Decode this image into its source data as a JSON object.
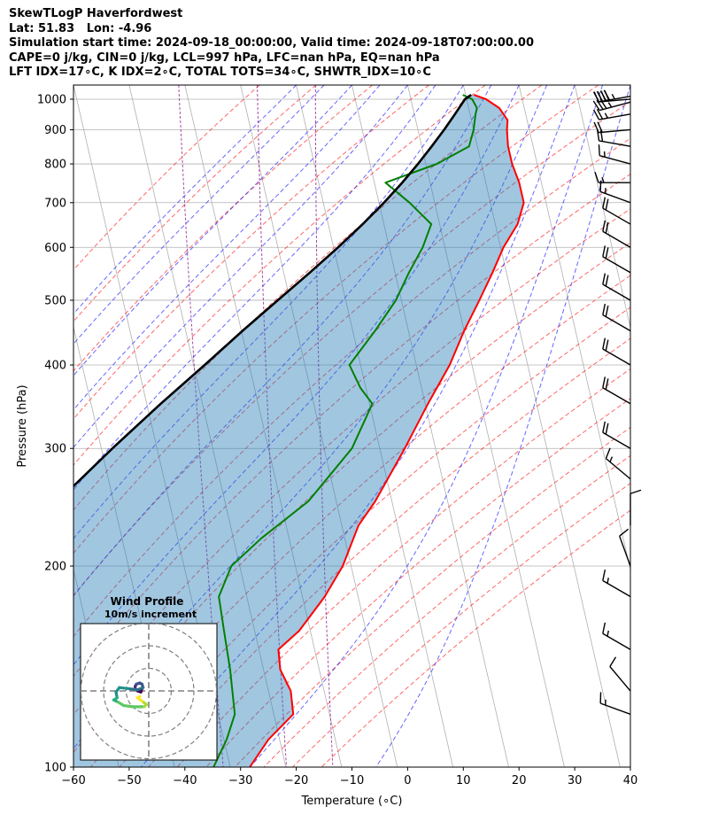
{
  "header": {
    "line1": "SkewTLogP Haverfordwest",
    "line2": "Lat: 51.83   Lon: -4.96",
    "line3": "Simulation start time: 2024-09-18_00:00:00, Valid time: 2024-09-18T07:00:00.00",
    "line4": "CAPE=0 j/kg, CIN=0 j/kg, LCL=997 hPa, LFC=nan hPa, EQ=nan hPa",
    "line5": "LFT IDX=17∘C, K IDX=2∘C, TOTAL TOTS=34∘C, SHWTR_IDX=10∘C"
  },
  "chart_data": {
    "type": "skew-t log-p",
    "xlabel": "Temperature (∘C)",
    "ylabel": "Pressure (hPa)",
    "xlim": [
      -60,
      40
    ],
    "ylim": [
      1050,
      100
    ],
    "x_ticks": [
      -60,
      -50,
      -40,
      -30,
      -20,
      -10,
      0,
      10,
      20,
      30,
      40
    ],
    "x_tick_labels": [
      "−60",
      "−50",
      "−40",
      "−30",
      "−20",
      "−10",
      "0",
      "10",
      "20",
      "30",
      "40"
    ],
    "y_ticks": [
      1000,
      900,
      800,
      700,
      600,
      500,
      400,
      300,
      200,
      100
    ],
    "y_tick_labels": [
      "1000",
      "900",
      "800",
      "700",
      "600",
      "500",
      "400",
      "300",
      "200",
      "100"
    ],
    "grid": true,
    "colors": {
      "temperature": "#ff0000",
      "dewpoint": "#008000",
      "parcel": "#000000",
      "cin_shading": "#1f77b4",
      "dry_adiabats": "#ff0000",
      "moist_adiabats": "#0000ff",
      "mixing_ratio": "#800080",
      "isotherms": "#b0b0b0"
    },
    "series": [
      {
        "role": "temperature",
        "points": [
          {
            "p": 1015,
            "t": 11.5
          },
          {
            "p": 1000,
            "t": 13.5
          },
          {
            "p": 970,
            "t": 15.5
          },
          {
            "p": 930,
            "t": 16.5
          },
          {
            "p": 900,
            "t": 16.0
          },
          {
            "p": 850,
            "t": 15.5
          },
          {
            "p": 800,
            "t": 15.5
          },
          {
            "p": 750,
            "t": 16.0
          },
          {
            "p": 700,
            "t": 16.0
          },
          {
            "p": 650,
            "t": 14.0
          },
          {
            "p": 600,
            "t": 10.5
          },
          {
            "p": 550,
            "t": 7.5
          },
          {
            "p": 500,
            "t": 4.0
          },
          {
            "p": 450,
            "t": 0.0
          },
          {
            "p": 400,
            "t": -4.0
          },
          {
            "p": 350,
            "t": -9.5
          },
          {
            "p": 300,
            "t": -15.5
          },
          {
            "p": 250,
            "t": -23.0
          },
          {
            "p": 230,
            "t": -27.0
          },
          {
            "p": 200,
            "t": -31.5
          },
          {
            "p": 180,
            "t": -36.0
          },
          {
            "p": 160,
            "t": -42.0
          },
          {
            "p": 150,
            "t": -46.5
          },
          {
            "p": 140,
            "t": -47.0
          },
          {
            "p": 130,
            "t": -46.0
          },
          {
            "p": 120,
            "t": -46.5
          },
          {
            "p": 110,
            "t": -52.0
          },
          {
            "p": 100,
            "t": -56.5
          }
        ]
      },
      {
        "role": "dewpoint",
        "points": [
          {
            "p": 1015,
            "t": 9.5
          },
          {
            "p": 1000,
            "t": 11.0
          },
          {
            "p": 970,
            "t": 11.5
          },
          {
            "p": 950,
            "t": 11.0
          },
          {
            "p": 900,
            "t": 10.0
          },
          {
            "p": 850,
            "t": 8.5
          },
          {
            "p": 800,
            "t": 2.0
          },
          {
            "p": 750,
            "t": -8.0
          },
          {
            "p": 700,
            "t": -4.5
          },
          {
            "p": 650,
            "t": -1.5
          },
          {
            "p": 600,
            "t": -4.0
          },
          {
            "p": 550,
            "t": -7.5
          },
          {
            "p": 500,
            "t": -11.0
          },
          {
            "p": 450,
            "t": -16.0
          },
          {
            "p": 400,
            "t": -22.0
          },
          {
            "p": 370,
            "t": -21.0
          },
          {
            "p": 350,
            "t": -19.5
          },
          {
            "p": 300,
            "t": -25.0
          },
          {
            "p": 250,
            "t": -35.0
          },
          {
            "p": 220,
            "t": -45.0
          },
          {
            "p": 200,
            "t": -51.5
          },
          {
            "p": 180,
            "t": -55.0
          },
          {
            "p": 160,
            "t": -55.5
          },
          {
            "p": 140,
            "t": -56.0
          },
          {
            "p": 120,
            "t": -57.0
          },
          {
            "p": 110,
            "t": -59.5
          },
          {
            "p": 100,
            "t": -63.0
          }
        ]
      },
      {
        "role": "parcel",
        "points": [
          {
            "p": 1015,
            "t": 11.0
          },
          {
            "p": 1000,
            "t": 9.7
          },
          {
            "p": 950,
            "t": 7.3
          },
          {
            "p": 900,
            "t": 4.7
          },
          {
            "p": 850,
            "t": 1.8
          },
          {
            "p": 800,
            "t": -1.4
          },
          {
            "p": 750,
            "t": -5.0
          },
          {
            "p": 700,
            "t": -9.1
          },
          {
            "p": 650,
            "t": -13.8
          },
          {
            "p": 600,
            "t": -19.2
          },
          {
            "p": 550,
            "t": -25.3
          },
          {
            "p": 500,
            "t": -32.2
          },
          {
            "p": 450,
            "t": -39.8
          },
          {
            "p": 400,
            "t": -48.0
          },
          {
            "p": 350,
            "t": -57.5
          },
          {
            "p": 300,
            "t": -68.0
          },
          {
            "p": 250,
            "t": -80.0
          },
          {
            "p": 200,
            "t": -94.0
          },
          {
            "p": 150,
            "t": -111.0
          },
          {
            "p": 120,
            "t": -123.0
          },
          {
            "p": 100,
            "t": -132.0
          }
        ]
      }
    ],
    "wind_barbs": [
      {
        "p": 1010,
        "dir": 260,
        "speed": 45
      },
      {
        "p": 1000,
        "dir": 265,
        "speed": 40
      },
      {
        "p": 990,
        "dir": 255,
        "speed": 35
      },
      {
        "p": 950,
        "dir": 260,
        "speed": 25
      },
      {
        "p": 900,
        "dir": 265,
        "speed": 20
      },
      {
        "p": 850,
        "dir": 280,
        "speed": 20
      },
      {
        "p": 800,
        "dir": 285,
        "speed": 15
      },
      {
        "p": 750,
        "dir": 270,
        "speed": 15
      },
      {
        "p": 700,
        "dir": 290,
        "speed": 15
      },
      {
        "p": 650,
        "dir": 300,
        "speed": 20
      },
      {
        "p": 600,
        "dir": 300,
        "speed": 20
      },
      {
        "p": 550,
        "dir": 300,
        "speed": 20
      },
      {
        "p": 500,
        "dir": 300,
        "speed": 20
      },
      {
        "p": 450,
        "dir": 300,
        "speed": 20
      },
      {
        "p": 400,
        "dir": 300,
        "speed": 20
      },
      {
        "p": 350,
        "dir": 300,
        "speed": 20
      },
      {
        "p": 300,
        "dir": 300,
        "speed": 20
      },
      {
        "p": 270,
        "dir": 310,
        "speed": 15
      },
      {
        "p": 230,
        "dir": 360,
        "speed": 10
      },
      {
        "p": 200,
        "dir": 340,
        "speed": 10
      },
      {
        "p": 180,
        "dir": 300,
        "speed": 15
      },
      {
        "p": 150,
        "dir": 300,
        "speed": 15
      },
      {
        "p": 130,
        "dir": 320,
        "speed": 10
      },
      {
        "p": 120,
        "dir": 290,
        "speed": 15
      }
    ],
    "inset": {
      "title_line1": "Wind Profile",
      "title_line2": "10m/s increment",
      "rings": [
        10,
        20,
        30
      ],
      "hodograph": [
        {
          "u": -3.0,
          "v": 1.0
        },
        {
          "u": -3.5,
          "v": -0.5
        },
        {
          "u": -5.0,
          "v": 0.0
        },
        {
          "u": -6.0,
          "v": 1.0
        },
        {
          "u": -6.0,
          "v": 2.0
        },
        {
          "u": -5.5,
          "v": 3.0
        },
        {
          "u": -4.0,
          "v": 3.5
        },
        {
          "u": -3.0,
          "v": 3.0
        },
        {
          "u": -2.5,
          "v": 1.5
        },
        {
          "u": -5.0,
          "v": 0.5
        },
        {
          "u": -9.0,
          "v": 1.0
        },
        {
          "u": -13.0,
          "v": 1.5
        },
        {
          "u": -14.5,
          "v": -0.5
        },
        {
          "u": -14.0,
          "v": -3.0
        },
        {
          "u": -15.5,
          "v": -4.0
        },
        {
          "u": -13.5,
          "v": -5.0
        },
        {
          "u": -11.0,
          "v": -6.5
        },
        {
          "u": -7.0,
          "v": -7.0
        },
        {
          "u": -2.0,
          "v": -7.0
        },
        {
          "u": -1.0,
          "v": -6.0
        },
        {
          "u": -3.0,
          "v": -4.5
        },
        {
          "u": -5.0,
          "v": -3.0
        },
        {
          "u": -4.0,
          "v": -2.5
        }
      ]
    }
  }
}
